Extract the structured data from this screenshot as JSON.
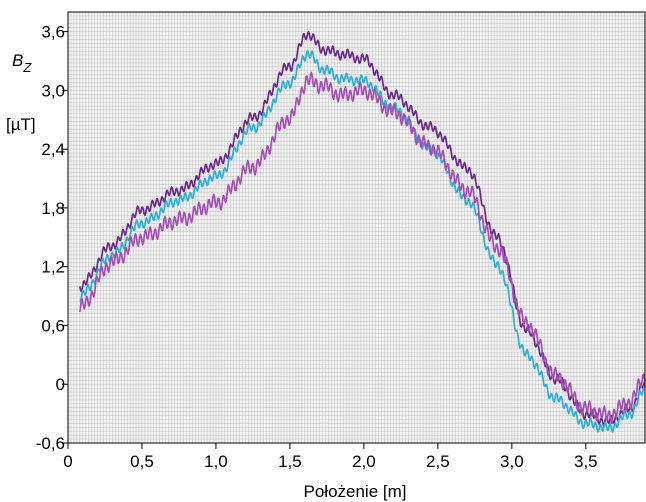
{
  "chart_data": {
    "type": "line",
    "xlabel": "Położenie [m]",
    "ylabel_main": "B",
    "ylabel_sub": "Z",
    "ylabel_unit": "[µT]",
    "xlim": [
      0,
      3.9
    ],
    "ylim": [
      -0.6,
      3.8
    ],
    "grid": true,
    "legend": "none",
    "x_ticks": [
      {
        "value": 0,
        "label": "0"
      },
      {
        "value": 0.5,
        "label": "0,5"
      },
      {
        "value": 1.0,
        "label": "1,0"
      },
      {
        "value": 1.5,
        "label": "1,5"
      },
      {
        "value": 2.0,
        "label": "2,0"
      },
      {
        "value": 2.5,
        "label": "2,5"
      },
      {
        "value": 3.0,
        "label": "3,0"
      },
      {
        "value": 3.5,
        "label": "3,5"
      }
    ],
    "y_ticks": [
      {
        "value": -0.6,
        "label": "-0,6"
      },
      {
        "value": 0,
        "label": "0"
      },
      {
        "value": 0.6,
        "label": "0,6"
      },
      {
        "value": 1.2,
        "label": "1,2"
      },
      {
        "value": 1.8,
        "label": "1,8"
      },
      {
        "value": 2.4,
        "label": "2,4"
      },
      {
        "value": 3.0,
        "label": "3,0"
      },
      {
        "value": 3.6,
        "label": "3,6"
      }
    ],
    "series": [
      {
        "color": "#6a2a8c",
        "ripple": 0.04,
        "x": [
          0.08,
          0.3,
          0.5,
          0.75,
          1.0,
          1.25,
          1.5,
          1.62,
          1.72,
          1.85,
          2.0,
          2.2,
          2.45,
          2.7,
          2.9,
          3.1,
          3.3,
          3.5,
          3.65,
          3.8,
          3.9
        ],
        "y": [
          1.0,
          1.42,
          1.78,
          1.98,
          2.25,
          2.72,
          3.25,
          3.58,
          3.42,
          3.37,
          3.32,
          2.95,
          2.62,
          2.2,
          1.5,
          0.55,
          0.05,
          -0.3,
          -0.38,
          -0.25,
          0.0
        ]
      },
      {
        "color": "#29b0d6",
        "ripple": 0.04,
        "x": [
          0.08,
          0.3,
          0.5,
          0.75,
          1.0,
          1.25,
          1.5,
          1.62,
          1.72,
          1.85,
          2.0,
          2.2,
          2.45,
          2.7,
          2.9,
          3.1,
          3.3,
          3.5,
          3.65,
          3.8,
          3.9
        ],
        "y": [
          0.9,
          1.32,
          1.65,
          1.88,
          2.12,
          2.62,
          3.08,
          3.38,
          3.22,
          3.12,
          3.1,
          2.82,
          2.4,
          1.88,
          1.22,
          0.3,
          -0.15,
          -0.4,
          -0.45,
          -0.3,
          -0.05
        ]
      },
      {
        "color": "#a54fb5",
        "ripple": 0.06,
        "x": [
          0.08,
          0.3,
          0.5,
          0.75,
          1.0,
          1.25,
          1.5,
          1.62,
          1.72,
          1.85,
          2.0,
          2.2,
          2.45,
          2.7,
          2.9,
          3.1,
          3.3,
          3.5,
          3.65,
          3.8,
          3.9
        ],
        "y": [
          0.78,
          1.25,
          1.5,
          1.68,
          1.85,
          2.22,
          2.72,
          3.1,
          3.05,
          2.95,
          3.0,
          2.78,
          2.42,
          1.98,
          1.4,
          0.62,
          0.08,
          -0.25,
          -0.32,
          -0.18,
          0.08
        ]
      }
    ]
  }
}
